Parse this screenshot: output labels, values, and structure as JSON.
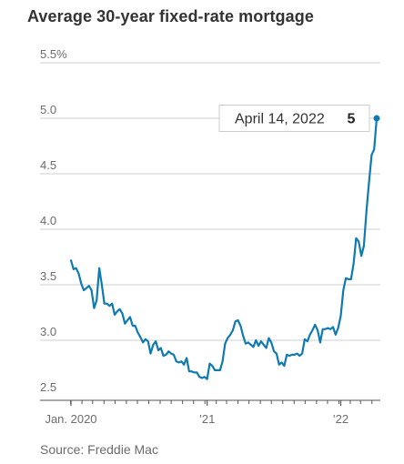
{
  "title": "Average 30-year fixed-rate mortgage",
  "source": "Source: Freddie Mac",
  "colors": {
    "line": "#0f7ab2",
    "grid": "#cfcfcf",
    "text": "#6b6b6b",
    "callout_border": "#cccccc"
  },
  "chart_data": {
    "type": "line",
    "title": "Average 30-year fixed-rate mortgage",
    "xlabel": "",
    "ylabel": "",
    "ylim": [
      2.5,
      5.5
    ],
    "y_ticks": [
      "5.5%",
      "5.0",
      "4.5",
      "4.0",
      "3.5",
      "3.0",
      "2.5"
    ],
    "x_tick_labels": [
      {
        "label": "Jan. 2020",
        "date": "2020-01-02"
      },
      {
        "label": "’21",
        "date": "2021-01-07"
      },
      {
        "label": "’22",
        "date": "2022-01-06"
      }
    ],
    "grid": "horizontal",
    "annotation": {
      "label": "April 14, 2022",
      "value": "5",
      "date": "2022-04-14"
    },
    "series": [
      {
        "values": [
          {
            "x": "2020-01-02",
            "y": 3.72
          },
          {
            "x": "2020-01-09",
            "y": 3.64
          },
          {
            "x": "2020-01-16",
            "y": 3.65
          },
          {
            "x": "2020-01-23",
            "y": 3.6
          },
          {
            "x": "2020-01-30",
            "y": 3.51
          },
          {
            "x": "2020-02-06",
            "y": 3.45
          },
          {
            "x": "2020-02-13",
            "y": 3.47
          },
          {
            "x": "2020-02-20",
            "y": 3.49
          },
          {
            "x": "2020-02-27",
            "y": 3.45
          },
          {
            "x": "2020-03-05",
            "y": 3.29
          },
          {
            "x": "2020-03-12",
            "y": 3.36
          },
          {
            "x": "2020-03-19",
            "y": 3.65
          },
          {
            "x": "2020-03-26",
            "y": 3.5
          },
          {
            "x": "2020-04-02",
            "y": 3.33
          },
          {
            "x": "2020-04-09",
            "y": 3.33
          },
          {
            "x": "2020-04-16",
            "y": 3.31
          },
          {
            "x": "2020-04-23",
            "y": 3.33
          },
          {
            "x": "2020-04-30",
            "y": 3.23
          },
          {
            "x": "2020-05-07",
            "y": 3.26
          },
          {
            "x": "2020-05-14",
            "y": 3.28
          },
          {
            "x": "2020-05-21",
            "y": 3.24
          },
          {
            "x": "2020-05-28",
            "y": 3.15
          },
          {
            "x": "2020-06-04",
            "y": 3.18
          },
          {
            "x": "2020-06-11",
            "y": 3.21
          },
          {
            "x": "2020-06-18",
            "y": 3.13
          },
          {
            "x": "2020-06-25",
            "y": 3.13
          },
          {
            "x": "2020-07-02",
            "y": 3.07
          },
          {
            "x": "2020-07-09",
            "y": 3.03
          },
          {
            "x": "2020-07-16",
            "y": 2.98
          },
          {
            "x": "2020-07-23",
            "y": 3.01
          },
          {
            "x": "2020-07-30",
            "y": 2.99
          },
          {
            "x": "2020-08-06",
            "y": 2.88
          },
          {
            "x": "2020-08-13",
            "y": 2.96
          },
          {
            "x": "2020-08-20",
            "y": 2.99
          },
          {
            "x": "2020-08-27",
            "y": 2.91
          },
          {
            "x": "2020-09-03",
            "y": 2.93
          },
          {
            "x": "2020-09-10",
            "y": 2.86
          },
          {
            "x": "2020-09-17",
            "y": 2.87
          },
          {
            "x": "2020-09-24",
            "y": 2.9
          },
          {
            "x": "2020-10-01",
            "y": 2.88
          },
          {
            "x": "2020-10-08",
            "y": 2.87
          },
          {
            "x": "2020-10-15",
            "y": 2.81
          },
          {
            "x": "2020-10-22",
            "y": 2.8
          },
          {
            "x": "2020-10-29",
            "y": 2.81
          },
          {
            "x": "2020-11-05",
            "y": 2.78
          },
          {
            "x": "2020-11-12",
            "y": 2.84
          },
          {
            "x": "2020-11-19",
            "y": 2.72
          },
          {
            "x": "2020-11-25",
            "y": 2.72
          },
          {
            "x": "2020-12-03",
            "y": 2.71
          },
          {
            "x": "2020-12-10",
            "y": 2.71
          },
          {
            "x": "2020-12-17",
            "y": 2.67
          },
          {
            "x": "2020-12-24",
            "y": 2.66
          },
          {
            "x": "2020-12-31",
            "y": 2.67
          },
          {
            "x": "2021-01-07",
            "y": 2.65
          },
          {
            "x": "2021-01-14",
            "y": 2.79
          },
          {
            "x": "2021-01-21",
            "y": 2.77
          },
          {
            "x": "2021-01-28",
            "y": 2.73
          },
          {
            "x": "2021-02-04",
            "y": 2.73
          },
          {
            "x": "2021-02-11",
            "y": 2.73
          },
          {
            "x": "2021-02-18",
            "y": 2.81
          },
          {
            "x": "2021-02-25",
            "y": 2.97
          },
          {
            "x": "2021-03-04",
            "y": 3.02
          },
          {
            "x": "2021-03-11",
            "y": 3.05
          },
          {
            "x": "2021-03-18",
            "y": 3.09
          },
          {
            "x": "2021-03-25",
            "y": 3.17
          },
          {
            "x": "2021-04-01",
            "y": 3.18
          },
          {
            "x": "2021-04-08",
            "y": 3.13
          },
          {
            "x": "2021-04-15",
            "y": 3.04
          },
          {
            "x": "2021-04-22",
            "y": 2.97
          },
          {
            "x": "2021-04-29",
            "y": 2.98
          },
          {
            "x": "2021-05-06",
            "y": 2.96
          },
          {
            "x": "2021-05-13",
            "y": 2.94
          },
          {
            "x": "2021-05-20",
            "y": 3.0
          },
          {
            "x": "2021-05-27",
            "y": 2.95
          },
          {
            "x": "2021-06-03",
            "y": 2.99
          },
          {
            "x": "2021-06-10",
            "y": 2.96
          },
          {
            "x": "2021-06-17",
            "y": 2.93
          },
          {
            "x": "2021-06-24",
            "y": 3.02
          },
          {
            "x": "2021-07-01",
            "y": 2.98
          },
          {
            "x": "2021-07-08",
            "y": 2.9
          },
          {
            "x": "2021-07-15",
            "y": 2.88
          },
          {
            "x": "2021-07-22",
            "y": 2.78
          },
          {
            "x": "2021-07-29",
            "y": 2.8
          },
          {
            "x": "2021-08-05",
            "y": 2.77
          },
          {
            "x": "2021-08-12",
            "y": 2.87
          },
          {
            "x": "2021-08-19",
            "y": 2.86
          },
          {
            "x": "2021-08-26",
            "y": 2.87
          },
          {
            "x": "2021-09-02",
            "y": 2.87
          },
          {
            "x": "2021-09-09",
            "y": 2.88
          },
          {
            "x": "2021-09-16",
            "y": 2.86
          },
          {
            "x": "2021-09-23",
            "y": 2.88
          },
          {
            "x": "2021-09-30",
            "y": 3.01
          },
          {
            "x": "2021-10-07",
            "y": 2.99
          },
          {
            "x": "2021-10-14",
            "y": 3.05
          },
          {
            "x": "2021-10-21",
            "y": 3.09
          },
          {
            "x": "2021-10-28",
            "y": 3.14
          },
          {
            "x": "2021-11-04",
            "y": 3.09
          },
          {
            "x": "2021-11-11",
            "y": 2.98
          },
          {
            "x": "2021-11-18",
            "y": 3.1
          },
          {
            "x": "2021-11-24",
            "y": 3.1
          },
          {
            "x": "2021-12-02",
            "y": 3.11
          },
          {
            "x": "2021-12-09",
            "y": 3.1
          },
          {
            "x": "2021-12-16",
            "y": 3.12
          },
          {
            "x": "2021-12-23",
            "y": 3.05
          },
          {
            "x": "2021-12-30",
            "y": 3.11
          },
          {
            "x": "2022-01-06",
            "y": 3.22
          },
          {
            "x": "2022-01-13",
            "y": 3.45
          },
          {
            "x": "2022-01-20",
            "y": 3.56
          },
          {
            "x": "2022-01-27",
            "y": 3.55
          },
          {
            "x": "2022-02-03",
            "y": 3.55
          },
          {
            "x": "2022-02-10",
            "y": 3.69
          },
          {
            "x": "2022-02-17",
            "y": 3.92
          },
          {
            "x": "2022-02-24",
            "y": 3.89
          },
          {
            "x": "2022-03-03",
            "y": 3.76
          },
          {
            "x": "2022-03-10",
            "y": 3.85
          },
          {
            "x": "2022-03-17",
            "y": 4.16
          },
          {
            "x": "2022-03-24",
            "y": 4.42
          },
          {
            "x": "2022-03-31",
            "y": 4.67
          },
          {
            "x": "2022-04-07",
            "y": 4.72
          },
          {
            "x": "2022-04-14",
            "y": 5.0
          }
        ]
      }
    ]
  }
}
